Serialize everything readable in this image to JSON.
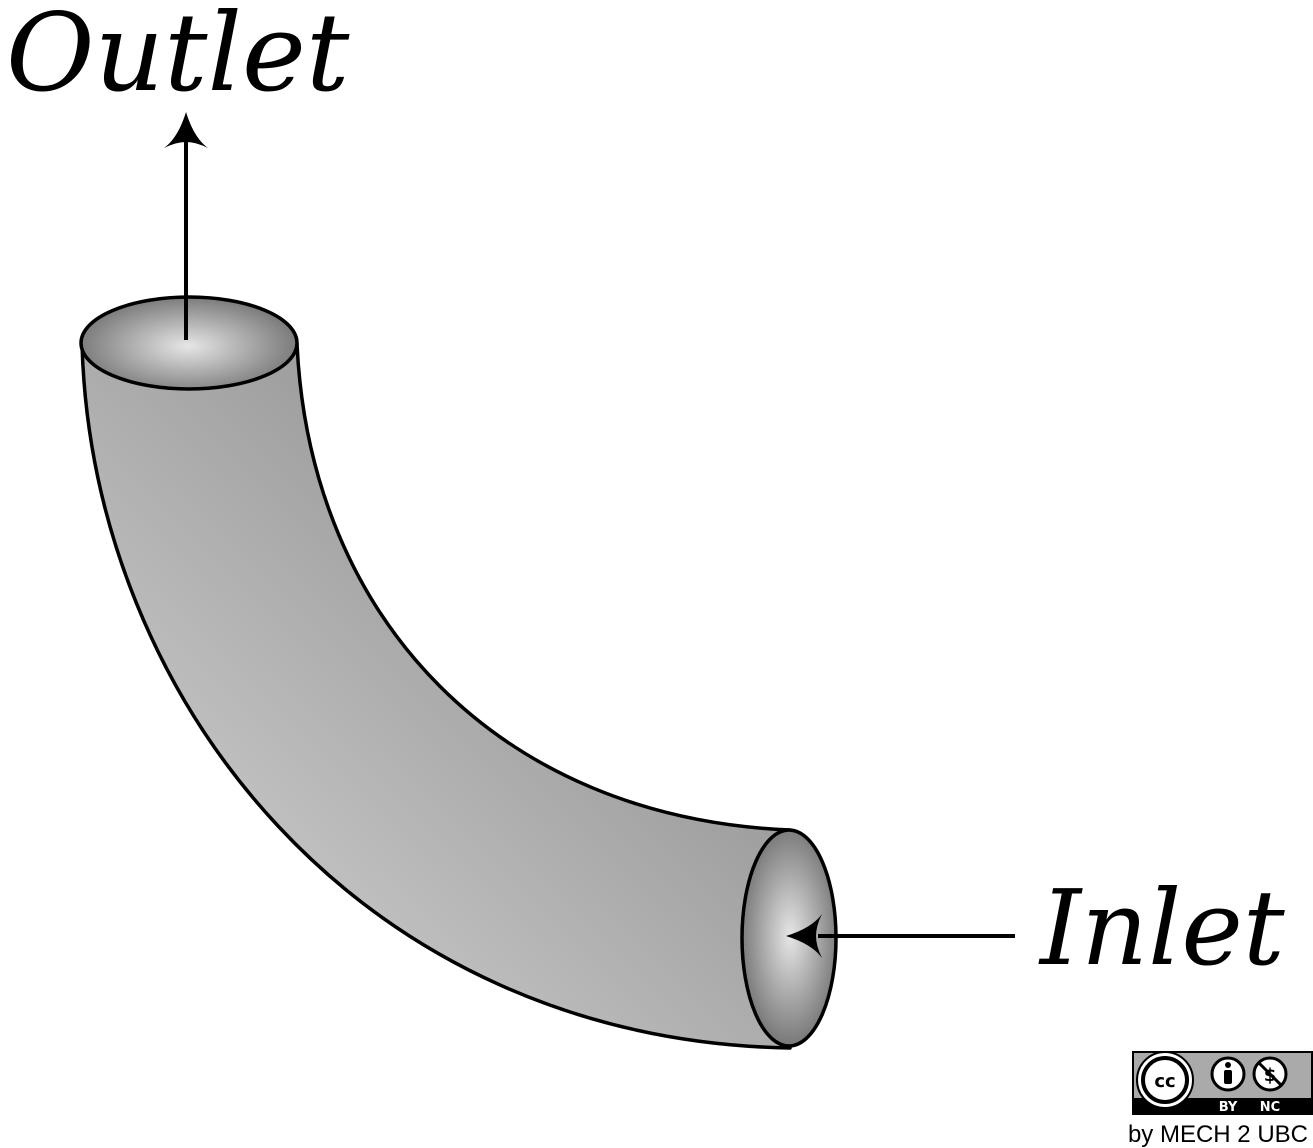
{
  "labels": {
    "outlet": "Outlet",
    "inlet": "Inlet"
  },
  "license": {
    "badge_cc": "cc",
    "badge_by": "BY",
    "badge_nc": "NC",
    "credit": "by MECH 2 UBC"
  },
  "colors": {
    "stroke": "#000000",
    "pipe_light": "#d2d2d2",
    "pipe_dark": "#8e8e8e",
    "opening_light": "#e4e4e4",
    "opening_dark": "#7a7a7a",
    "badge_bg": "#a9aaa9"
  }
}
